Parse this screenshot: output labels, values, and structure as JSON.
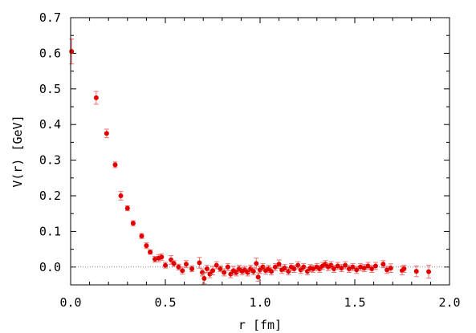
{
  "chart_data": {
    "type": "scatter",
    "title": "",
    "xlabel": "r  [fm]",
    "ylabel": "V(r)  [GeV]",
    "xlim": [
      0.0,
      2.0
    ],
    "ylim": [
      -0.05,
      0.7
    ],
    "xticks": [
      0.0,
      0.5,
      1.0,
      1.5,
      2.0
    ],
    "xtick_labels": [
      "0.0",
      "0.5",
      "1.0",
      "1.5",
      "2.0"
    ],
    "yticks": [
      0.0,
      0.1,
      0.2,
      0.3,
      0.4,
      0.5,
      0.6,
      0.7
    ],
    "ytick_labels": [
      "0.0",
      "0.1",
      "0.2",
      "0.3",
      "0.4",
      "0.5",
      "0.6",
      "0.7"
    ],
    "grid": false,
    "reference_line_y": 0.0,
    "colors": {
      "marker": "#e00000",
      "errorbar": "#f07070",
      "reference_line": "#888888",
      "axes": "#000000"
    },
    "series": [
      {
        "marker": "circle",
        "points": [
          {
            "x": 0.005,
            "y": 0.605,
            "err": 0.035
          },
          {
            "x": 0.135,
            "y": 0.475,
            "err": 0.018
          },
          {
            "x": 0.19,
            "y": 0.375,
            "err": 0.012
          },
          {
            "x": 0.235,
            "y": 0.287,
            "err": 0.008
          },
          {
            "x": 0.265,
            "y": 0.2,
            "err": 0.012
          },
          {
            "x": 0.3,
            "y": 0.165,
            "err": 0.007
          },
          {
            "x": 0.33,
            "y": 0.123,
            "err": 0.007
          },
          {
            "x": 0.375,
            "y": 0.087,
            "err": 0.007
          },
          {
            "x": 0.4,
            "y": 0.06,
            "err": 0.008
          },
          {
            "x": 0.42,
            "y": 0.042,
            "err": 0.006
          },
          {
            "x": 0.445,
            "y": 0.022,
            "err": 0.008
          },
          {
            "x": 0.465,
            "y": 0.025,
            "err": 0.01
          },
          {
            "x": 0.48,
            "y": 0.028,
            "err": 0.009
          },
          {
            "x": 0.5,
            "y": 0.005,
            "err": 0.008
          },
          {
            "x": 0.53,
            "y": 0.02,
            "err": 0.012
          },
          {
            "x": 0.545,
            "y": 0.01,
            "err": 0.008
          },
          {
            "x": 0.57,
            "y": 0.0,
            "err": 0.008
          },
          {
            "x": 0.59,
            "y": -0.01,
            "err": 0.01
          },
          {
            "x": 0.61,
            "y": 0.008,
            "err": 0.01
          },
          {
            "x": 0.64,
            "y": -0.005,
            "err": 0.008
          },
          {
            "x": 0.68,
            "y": 0.012,
            "err": 0.015
          },
          {
            "x": 0.695,
            "y": -0.015,
            "err": 0.01
          },
          {
            "x": 0.705,
            "y": -0.032,
            "err": 0.015
          },
          {
            "x": 0.72,
            "y": -0.005,
            "err": 0.01
          },
          {
            "x": 0.735,
            "y": -0.02,
            "err": 0.01
          },
          {
            "x": 0.75,
            "y": -0.01,
            "err": 0.012
          },
          {
            "x": 0.77,
            "y": 0.005,
            "err": 0.01
          },
          {
            "x": 0.79,
            "y": -0.005,
            "err": 0.008
          },
          {
            "x": 0.81,
            "y": -0.015,
            "err": 0.01
          },
          {
            "x": 0.83,
            "y": 0.0,
            "err": 0.01
          },
          {
            "x": 0.845,
            "y": -0.02,
            "err": 0.01
          },
          {
            "x": 0.86,
            "y": -0.01,
            "err": 0.012
          },
          {
            "x": 0.875,
            "y": -0.015,
            "err": 0.01
          },
          {
            "x": 0.89,
            "y": -0.005,
            "err": 0.01
          },
          {
            "x": 0.905,
            "y": -0.012,
            "err": 0.01
          },
          {
            "x": 0.92,
            "y": -0.008,
            "err": 0.01
          },
          {
            "x": 0.935,
            "y": -0.015,
            "err": 0.01
          },
          {
            "x": 0.95,
            "y": -0.005,
            "err": 0.01
          },
          {
            "x": 0.965,
            "y": -0.012,
            "err": 0.01
          },
          {
            "x": 0.98,
            "y": 0.01,
            "err": 0.015
          },
          {
            "x": 0.99,
            "y": -0.028,
            "err": 0.012
          },
          {
            "x": 1.0,
            "y": -0.008,
            "err": 0.01
          },
          {
            "x": 1.015,
            "y": 0.0,
            "err": 0.01
          },
          {
            "x": 1.03,
            "y": -0.01,
            "err": 0.01
          },
          {
            "x": 1.045,
            "y": -0.005,
            "err": 0.01
          },
          {
            "x": 1.06,
            "y": -0.012,
            "err": 0.01
          },
          {
            "x": 1.08,
            "y": 0.0,
            "err": 0.01
          },
          {
            "x": 1.1,
            "y": 0.008,
            "err": 0.012
          },
          {
            "x": 1.115,
            "y": -0.008,
            "err": 0.01
          },
          {
            "x": 1.13,
            "y": -0.003,
            "err": 0.01
          },
          {
            "x": 1.15,
            "y": -0.012,
            "err": 0.01
          },
          {
            "x": 1.165,
            "y": 0.0,
            "err": 0.01
          },
          {
            "x": 1.18,
            "y": -0.005,
            "err": 0.01
          },
          {
            "x": 1.2,
            "y": 0.005,
            "err": 0.01
          },
          {
            "x": 1.215,
            "y": -0.008,
            "err": 0.01
          },
          {
            "x": 1.23,
            "y": 0.0,
            "err": 0.01
          },
          {
            "x": 1.25,
            "y": -0.012,
            "err": 0.01
          },
          {
            "x": 1.265,
            "y": -0.003,
            "err": 0.01
          },
          {
            "x": 1.28,
            "y": -0.005,
            "err": 0.01
          },
          {
            "x": 1.3,
            "y": 0.0,
            "err": 0.01
          },
          {
            "x": 1.315,
            "y": -0.005,
            "err": 0.01
          },
          {
            "x": 1.33,
            "y": 0.003,
            "err": 0.01
          },
          {
            "x": 1.345,
            "y": 0.008,
            "err": 0.01
          },
          {
            "x": 1.36,
            "y": 0.0,
            "err": 0.01
          },
          {
            "x": 1.375,
            "y": 0.005,
            "err": 0.01
          },
          {
            "x": 1.39,
            "y": -0.005,
            "err": 0.01
          },
          {
            "x": 1.41,
            "y": 0.003,
            "err": 0.01
          },
          {
            "x": 1.43,
            "y": -0.003,
            "err": 0.01
          },
          {
            "x": 1.45,
            "y": 0.005,
            "err": 0.01
          },
          {
            "x": 1.47,
            "y": -0.005,
            "err": 0.01
          },
          {
            "x": 1.49,
            "y": 0.0,
            "err": 0.01
          },
          {
            "x": 1.51,
            "y": -0.008,
            "err": 0.01
          },
          {
            "x": 1.53,
            "y": 0.0,
            "err": 0.01
          },
          {
            "x": 1.55,
            "y": -0.003,
            "err": 0.01
          },
          {
            "x": 1.57,
            "y": 0.003,
            "err": 0.01
          },
          {
            "x": 1.59,
            "y": -0.005,
            "err": 0.01
          },
          {
            "x": 1.61,
            "y": 0.003,
            "err": 0.01
          },
          {
            "x": 1.65,
            "y": 0.008,
            "err": 0.01
          },
          {
            "x": 1.67,
            "y": -0.008,
            "err": 0.01
          },
          {
            "x": 1.69,
            "y": -0.003,
            "err": 0.012
          },
          {
            "x": 1.75,
            "y": -0.01,
            "err": 0.012
          },
          {
            "x": 1.76,
            "y": -0.005,
            "err": 0.01
          },
          {
            "x": 1.825,
            "y": -0.012,
            "err": 0.015
          },
          {
            "x": 1.89,
            "y": -0.013,
            "err": 0.018
          }
        ]
      }
    ]
  }
}
